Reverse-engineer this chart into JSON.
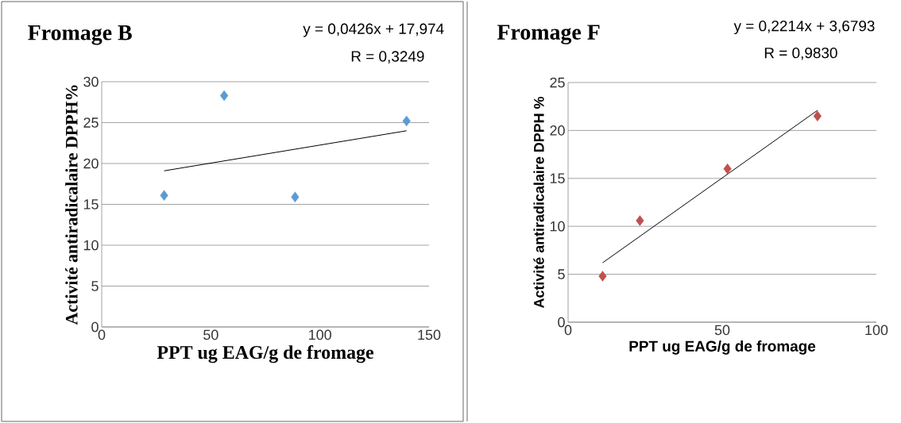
{
  "chart_data": [
    {
      "type": "scatter",
      "title": "Fromage  B",
      "xlabel": "PPT ug EAG/g de fromage",
      "ylabel": "Activité  antiradicalaire  DPPH%",
      "annotations": [
        "y = 0,0426x + 17,974",
        "R = 0,3249"
      ],
      "series": [
        {
          "color": "#5b9bd5",
          "x": [
            28.6,
            56.1,
            88.6,
            139.7
          ],
          "values": [
            16.1,
            28.3,
            15.9,
            25.2
          ]
        },
        {
          "type": "line",
          "color": "#000000",
          "marker": "none",
          "x": [
            28.6,
            139.7
          ],
          "values": [
            19.1,
            24.0
          ]
        }
      ],
      "xlim": [
        0,
        150
      ],
      "ylim": [
        0,
        30
      ],
      "xticks": [
        0,
        50,
        100,
        150
      ],
      "yticks": [
        0,
        5,
        10,
        15,
        20,
        25,
        30
      ],
      "grid": "y",
      "marker": "diamond"
    },
    {
      "type": "scatter",
      "title": "Fromage F",
      "xlabel": "PPT ug EAG/g de fromage",
      "ylabel": "Activité antiradicalaire DPPH %",
      "annotations": [
        "y = 0,2214x + 3,6793",
        "R = 0,9830"
      ],
      "series": [
        {
          "color": "#c0504d",
          "x": [
            11.2,
            23.3,
            51.7,
            80.9
          ],
          "values": [
            4.8,
            10.6,
            16.0,
            21.5
          ]
        },
        {
          "type": "line",
          "color": "#000000",
          "marker": "none",
          "x": [
            11.2,
            80.9
          ],
          "values": [
            6.2,
            22.1
          ]
        }
      ],
      "xlim": [
        0,
        100
      ],
      "ylim": [
        0,
        25
      ],
      "xticks": [
        0,
        50,
        100
      ],
      "yticks": [
        0,
        5,
        10,
        15,
        20,
        25
      ],
      "grid": "y",
      "marker": "diamond"
    }
  ]
}
